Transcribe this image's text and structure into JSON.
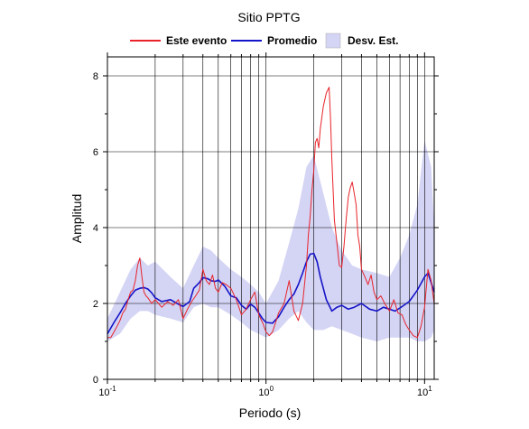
{
  "chart_data": {
    "type": "line",
    "title": "Sitio PPTG",
    "xlabel": "Periodo (s)",
    "ylabel": "Amplitud",
    "xscale": "log",
    "xlim": [
      0.1,
      11.5
    ],
    "ylim": [
      0,
      8.5
    ],
    "grid": true,
    "legend_position": "top",
    "x_ticks": [
      {
        "value": 0.1,
        "base": "10",
        "exp": "-1"
      },
      {
        "value": 1,
        "base": "10",
        "exp": "0"
      },
      {
        "value": 10,
        "base": "10",
        "exp": "1"
      }
    ],
    "y_ticks": [
      0,
      2,
      4,
      6,
      8
    ],
    "legend": [
      {
        "label": "Este evento",
        "kind": "line",
        "color": "#e8232a"
      },
      {
        "label": "Promedio",
        "kind": "line",
        "color": "#1414c8"
      },
      {
        "label": "Desv. Est.",
        "kind": "band",
        "color": "#d4d4f5"
      }
    ],
    "band": {
      "name": "Desv. Est.",
      "color": "#d4d4f5",
      "x": [
        0.1,
        0.12,
        0.14,
        0.16,
        0.18,
        0.2,
        0.25,
        0.3,
        0.35,
        0.4,
        0.45,
        0.5,
        0.6,
        0.7,
        0.8,
        0.9,
        1.0,
        1.2,
        1.4,
        1.6,
        1.8,
        2.0,
        2.3,
        2.6,
        3.0,
        3.5,
        4.0,
        5.0,
        6.0,
        7.0,
        8.0,
        9.0,
        10.0,
        11.0,
        11.5
      ],
      "upper": [
        1.6,
        2.3,
        2.9,
        3.2,
        3.0,
        3.1,
        2.7,
        2.4,
        3.0,
        3.5,
        3.4,
        3.2,
        2.9,
        2.7,
        2.5,
        2.3,
        2.0,
        2.6,
        3.6,
        4.5,
        5.6,
        5.9,
        4.9,
        4.0,
        3.4,
        3.0,
        2.9,
        2.8,
        2.7,
        3.2,
        3.8,
        4.6,
        6.3,
        5.6,
        4.0
      ],
      "lower": [
        1.0,
        1.2,
        1.6,
        1.8,
        1.8,
        1.7,
        1.6,
        1.5,
        1.9,
        2.0,
        1.9,
        1.9,
        1.7,
        1.5,
        1.3,
        1.2,
        1.1,
        1.3,
        1.6,
        1.8,
        1.5,
        1.3,
        1.3,
        1.4,
        1.3,
        1.2,
        1.1,
        1.0,
        1.1,
        1.1,
        1.1,
        1.0,
        1.0,
        1.1,
        1.3
      ]
    },
    "series": [
      {
        "name": "Promedio",
        "color": "#1414c8",
        "x": [
          0.1,
          0.11,
          0.12,
          0.13,
          0.14,
          0.15,
          0.16,
          0.17,
          0.18,
          0.19,
          0.2,
          0.22,
          0.25,
          0.28,
          0.3,
          0.33,
          0.35,
          0.38,
          0.4,
          0.43,
          0.45,
          0.48,
          0.5,
          0.55,
          0.6,
          0.65,
          0.7,
          0.75,
          0.8,
          0.85,
          0.9,
          0.95,
          1.0,
          1.1,
          1.2,
          1.3,
          1.4,
          1.5,
          1.6,
          1.7,
          1.8,
          1.9,
          2.0,
          2.1,
          2.2,
          2.4,
          2.6,
          2.8,
          3.0,
          3.3,
          3.6,
          4.0,
          4.5,
          5.0,
          5.5,
          6.0,
          6.5,
          7.0,
          8.0,
          9.0,
          10.0,
          10.5,
          11.0,
          11.5
        ],
        "y": [
          1.2,
          1.5,
          1.75,
          2.0,
          2.2,
          2.35,
          2.4,
          2.42,
          2.38,
          2.28,
          2.15,
          2.05,
          2.1,
          1.98,
          1.92,
          2.05,
          2.4,
          2.55,
          2.68,
          2.65,
          2.6,
          2.58,
          2.62,
          2.45,
          2.2,
          2.15,
          1.95,
          1.85,
          1.98,
          1.9,
          1.75,
          1.6,
          1.5,
          1.48,
          1.65,
          1.9,
          2.1,
          2.25,
          2.5,
          2.8,
          3.1,
          3.3,
          3.32,
          3.1,
          2.7,
          2.1,
          1.8,
          1.9,
          1.95,
          1.85,
          1.9,
          2.0,
          1.85,
          1.8,
          1.9,
          1.85,
          1.8,
          1.88,
          2.05,
          2.35,
          2.7,
          2.8,
          2.55,
          2.3
        ]
      },
      {
        "name": "Este evento",
        "color": "#e8232a",
        "x": [
          0.1,
          0.105,
          0.11,
          0.115,
          0.12,
          0.125,
          0.13,
          0.135,
          0.14,
          0.145,
          0.15,
          0.155,
          0.16,
          0.165,
          0.17,
          0.175,
          0.18,
          0.19,
          0.2,
          0.21,
          0.22,
          0.24,
          0.26,
          0.28,
          0.3,
          0.32,
          0.34,
          0.36,
          0.38,
          0.4,
          0.42,
          0.44,
          0.46,
          0.48,
          0.5,
          0.53,
          0.56,
          0.6,
          0.65,
          0.7,
          0.75,
          0.8,
          0.85,
          0.9,
          0.95,
          1.0,
          1.05,
          1.1,
          1.15,
          1.2,
          1.3,
          1.4,
          1.5,
          1.6,
          1.7,
          1.8,
          1.85,
          1.9,
          1.95,
          2.0,
          2.05,
          2.1,
          2.15,
          2.2,
          2.3,
          2.4,
          2.5,
          2.55,
          2.6,
          2.7,
          2.8,
          2.9,
          3.0,
          3.1,
          3.2,
          3.3,
          3.4,
          3.5,
          3.6,
          3.7,
          3.8,
          3.9,
          4.0,
          4.2,
          4.4,
          4.6,
          4.8,
          5.0,
          5.3,
          5.6,
          6.0,
          6.4,
          6.8,
          7.2,
          7.6,
          8.0,
          8.5,
          9.0,
          9.5,
          10.0,
          10.5,
          11.0,
          11.5
        ],
        "y": [
          1.1,
          1.1,
          1.25,
          1.4,
          1.55,
          1.75,
          1.85,
          2.1,
          2.3,
          2.35,
          2.6,
          3.0,
          3.2,
          2.7,
          2.3,
          2.2,
          2.15,
          2.0,
          2.1,
          2.0,
          1.9,
          2.05,
          1.95,
          2.1,
          1.6,
          1.85,
          2.05,
          2.2,
          2.35,
          2.9,
          2.6,
          2.5,
          2.75,
          2.4,
          2.3,
          2.55,
          2.5,
          2.4,
          2.1,
          1.7,
          1.85,
          2.1,
          2.3,
          1.7,
          1.5,
          1.25,
          1.15,
          1.25,
          1.5,
          1.75,
          2.0,
          2.6,
          1.8,
          1.55,
          2.0,
          3.0,
          3.8,
          4.3,
          5.0,
          5.5,
          6.25,
          6.35,
          6.1,
          6.6,
          7.2,
          7.55,
          7.7,
          6.9,
          5.8,
          4.2,
          3.6,
          3.0,
          2.95,
          3.5,
          4.2,
          4.8,
          5.05,
          5.2,
          4.9,
          4.6,
          3.8,
          3.5,
          2.9,
          2.7,
          2.5,
          2.75,
          2.3,
          2.1,
          2.2,
          2.0,
          1.8,
          2.1,
          1.75,
          1.7,
          1.45,
          1.3,
          1.15,
          1.1,
          1.4,
          1.9,
          2.9,
          2.6,
          2.0
        ]
      }
    ]
  }
}
